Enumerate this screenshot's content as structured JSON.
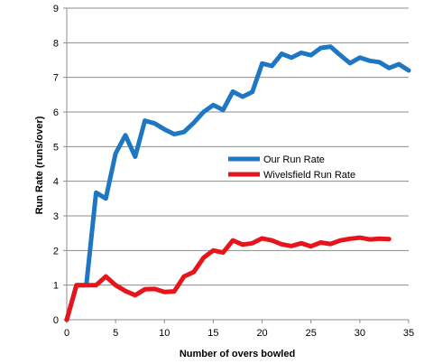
{
  "chart_data": {
    "type": "line",
    "title": "",
    "xlabel": "Number of overs bowled",
    "ylabel": "Run Rate (runs/over)",
    "xlim": [
      0,
      35
    ],
    "ylim": [
      0,
      9
    ],
    "x_ticks": [
      0,
      5,
      10,
      15,
      20,
      25,
      30,
      35
    ],
    "y_ticks": [
      0,
      1,
      2,
      3,
      4,
      5,
      6,
      7,
      8,
      9
    ],
    "grid": "horizontal major gridlines",
    "legend_position": "center-right",
    "series": [
      {
        "name": "Our Run Rate",
        "color": "#1f77c4",
        "points": [
          [
            0,
            0
          ],
          [
            1,
            1
          ],
          [
            2,
            1
          ],
          [
            3,
            3.67
          ],
          [
            4,
            3.5
          ],
          [
            5,
            4.8
          ],
          [
            6,
            5.33
          ],
          [
            7,
            4.71
          ],
          [
            8,
            5.75
          ],
          [
            9,
            5.67
          ],
          [
            10,
            5.5
          ],
          [
            11,
            5.36
          ],
          [
            12,
            5.42
          ],
          [
            13,
            5.69
          ],
          [
            14,
            6.0
          ],
          [
            15,
            6.2
          ],
          [
            16,
            6.06
          ],
          [
            17,
            6.59
          ],
          [
            18,
            6.44
          ],
          [
            19,
            6.58
          ],
          [
            20,
            7.4
          ],
          [
            21,
            7.33
          ],
          [
            22,
            7.68
          ],
          [
            23,
            7.57
          ],
          [
            24,
            7.71
          ],
          [
            25,
            7.64
          ],
          [
            26,
            7.85
          ],
          [
            27,
            7.89
          ],
          [
            28,
            7.64
          ],
          [
            29,
            7.41
          ],
          [
            30,
            7.57
          ],
          [
            31,
            7.48
          ],
          [
            32,
            7.44
          ],
          [
            33,
            7.27
          ],
          [
            34,
            7.38
          ],
          [
            35,
            7.2
          ]
        ]
      },
      {
        "name": "Wivelsfield Run Rate",
        "color": "#e8141b",
        "points": [
          [
            0,
            0
          ],
          [
            1,
            1
          ],
          [
            2,
            1
          ],
          [
            3,
            1
          ],
          [
            4,
            1.25
          ],
          [
            5,
            1.0
          ],
          [
            6,
            0.83
          ],
          [
            7,
            0.71
          ],
          [
            8,
            0.88
          ],
          [
            9,
            0.89
          ],
          [
            10,
            0.8
          ],
          [
            11,
            0.82
          ],
          [
            12,
            1.25
          ],
          [
            13,
            1.38
          ],
          [
            14,
            1.79
          ],
          [
            15,
            2.0
          ],
          [
            16,
            1.94
          ],
          [
            17,
            2.29
          ],
          [
            18,
            2.17
          ],
          [
            19,
            2.21
          ],
          [
            20,
            2.35
          ],
          [
            21,
            2.29
          ],
          [
            22,
            2.18
          ],
          [
            23,
            2.13
          ],
          [
            24,
            2.21
          ],
          [
            25,
            2.12
          ],
          [
            26,
            2.23
          ],
          [
            27,
            2.19
          ],
          [
            28,
            2.29
          ],
          [
            29,
            2.34
          ],
          [
            30,
            2.37
          ],
          [
            31,
            2.32
          ],
          [
            32,
            2.34
          ],
          [
            33,
            2.33
          ]
        ]
      }
    ]
  }
}
